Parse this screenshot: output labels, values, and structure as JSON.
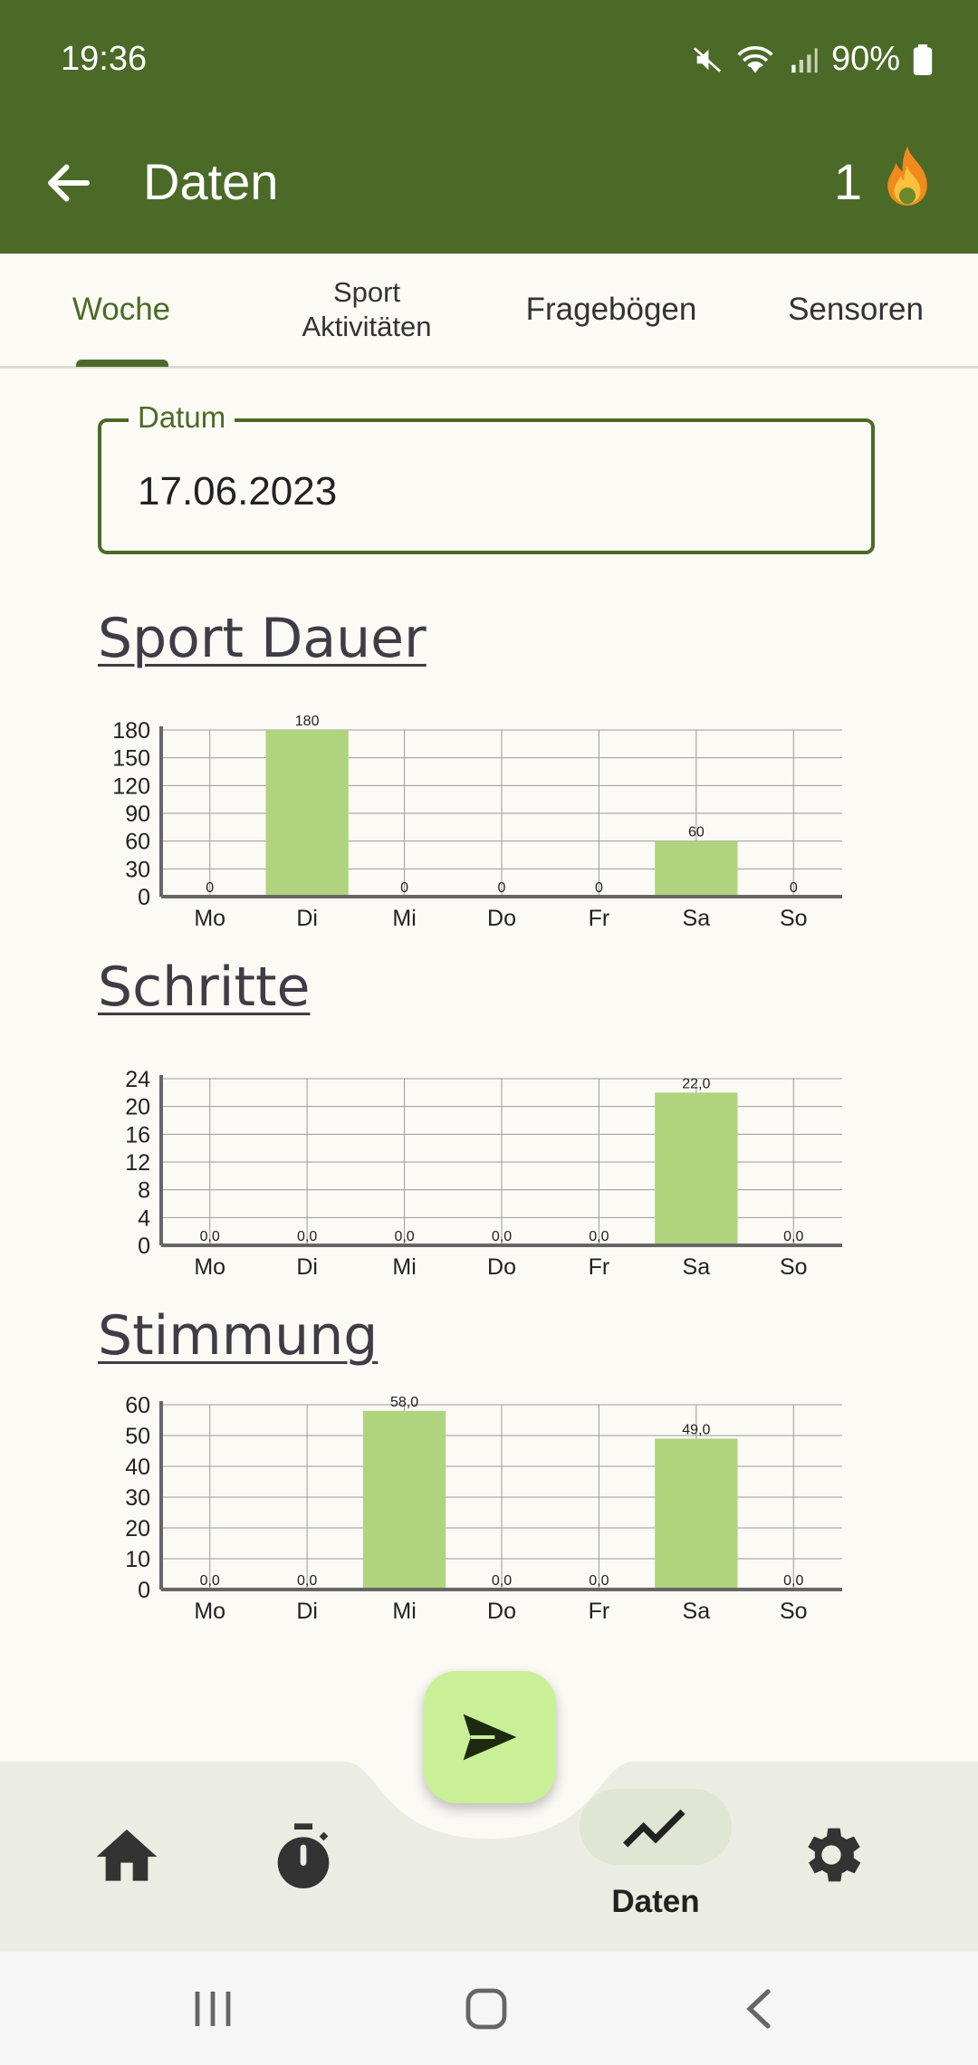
{
  "status_bar": {
    "time": "19:36",
    "battery": "90%"
  },
  "app_bar": {
    "title": "Daten",
    "streak_count": "1"
  },
  "tabs": [
    {
      "label": "Woche",
      "active": true
    },
    {
      "label_line1": "Sport",
      "label_line2": "Aktivitäten",
      "active": false
    },
    {
      "label": "Fragebögen",
      "active": false
    },
    {
      "label": "Sensoren",
      "active": false
    }
  ],
  "date_field": {
    "label": "Datum",
    "value": "17.06.2023"
  },
  "sections": {
    "sport": {
      "title": "Sport Dauer"
    },
    "steps": {
      "title": "Schritte"
    },
    "mood": {
      "title": "Stimmung"
    }
  },
  "chart_data": [
    {
      "type": "bar",
      "categories": [
        "Mo",
        "Di",
        "Mi",
        "Do",
        "Fr",
        "Sa",
        "So"
      ],
      "values": [
        0,
        180,
        0,
        0,
        0,
        60,
        0
      ],
      "value_labels": [
        "0",
        "180",
        "0",
        "0",
        "0",
        "60",
        "0"
      ],
      "yticks": [
        0,
        30,
        60,
        90,
        120,
        150,
        180
      ],
      "ylim": [
        0,
        180
      ],
      "grid": true,
      "bar_color": "#b0d47e"
    },
    {
      "type": "bar",
      "categories": [
        "Mo",
        "Di",
        "Mi",
        "Do",
        "Fr",
        "Sa",
        "So"
      ],
      "values": [
        0,
        0,
        0,
        0,
        0,
        22,
        0
      ],
      "value_labels": [
        "0,0",
        "0,0",
        "0,0",
        "0,0",
        "0,0",
        "22,0",
        "0,0"
      ],
      "yticks": [
        0,
        4,
        8,
        12,
        16,
        20,
        24
      ],
      "ylim": [
        0,
        24
      ],
      "grid": true,
      "bar_color": "#b0d47e"
    },
    {
      "type": "bar",
      "categories": [
        "Mo",
        "Di",
        "Mi",
        "Do",
        "Fr",
        "Sa",
        "So"
      ],
      "values": [
        0,
        0,
        58,
        0,
        0,
        49,
        0
      ],
      "value_labels": [
        "0,0",
        "0,0",
        "58,0",
        "0,0",
        "0,0",
        "49,0",
        "0,0"
      ],
      "yticks": [
        0,
        10,
        20,
        30,
        40,
        50,
        60
      ],
      "ylim": [
        0,
        60
      ],
      "grid": true,
      "bar_color": "#b0d47e"
    }
  ],
  "bottom_nav": {
    "items": [
      {
        "icon": "home-icon",
        "label": ""
      },
      {
        "icon": "timer-icon",
        "label": ""
      },
      {
        "icon": "trending-icon",
        "label": "Daten",
        "active": true
      },
      {
        "icon": "gear-icon",
        "label": ""
      }
    ]
  },
  "colors": {
    "primary": "#4b6a27",
    "accent_fab": "#c9ef97",
    "bar": "#b0d47e",
    "background": "#fbfaf5"
  }
}
